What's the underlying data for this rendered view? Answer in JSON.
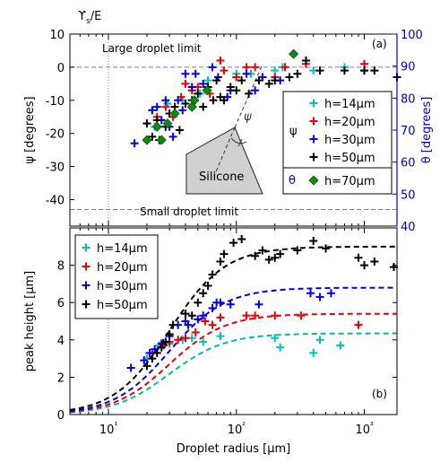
{
  "chart_data": [
    {
      "type": "scatter",
      "panel_label": "(a)",
      "xscale": "log",
      "xlim": [
        5,
        1800
      ],
      "ylim": [
        -48,
        10
      ],
      "y2lim": [
        40,
        100
      ],
      "yticks": [
        10,
        0,
        -10,
        -20,
        -30,
        -40
      ],
      "y2ticks": [
        100,
        90,
        80,
        70,
        60,
        50,
        40
      ],
      "ylabel": "ψ [degrees]",
      "y2label": "θ [degrees]",
      "top_xlabel": "ϒs/E",
      "reference_lines": {
        "large_y": 0,
        "small_y": -43,
        "vline_x": 10,
        "large_label": "Large droplet limit",
        "small_label": "Small droplet limit"
      },
      "inset": {
        "material": "Silicone",
        "angle_label": "ψ"
      },
      "legend": {
        "psi_label": "ψ",
        "theta_label": "θ",
        "position": "right"
      },
      "series": [
        {
          "name": "h=14μm",
          "color": "#00c0c0",
          "marker": "plus",
          "points": [
            [
              22,
              -13
            ],
            [
              23,
              -18
            ],
            [
              29,
              -11
            ],
            [
              38,
              -10
            ],
            [
              45,
              -7
            ],
            [
              52,
              -8
            ],
            [
              60,
              -4
            ],
            [
              100,
              -2
            ],
            [
              130,
              -2
            ],
            [
              200,
              -1
            ],
            [
              230,
              0
            ],
            [
              400,
              -1
            ],
            [
              700,
              0
            ]
          ]
        },
        {
          "name": "h=20μm",
          "color": "#ee0000",
          "marker": "plus",
          "points": [
            [
              24,
              -15
            ],
            [
              28,
              -12
            ],
            [
              32,
              -15
            ],
            [
              37,
              -9
            ],
            [
              40,
              -5
            ],
            [
              45,
              -7
            ],
            [
              50,
              -6
            ],
            [
              62,
              -8
            ],
            [
              75,
              2
            ],
            [
              80,
              -1
            ],
            [
              100,
              -3
            ],
            [
              120,
              0
            ],
            [
              140,
              0
            ],
            [
              160,
              -3
            ],
            [
              200,
              -3
            ],
            [
              240,
              0
            ],
            [
              350,
              1
            ],
            [
              1000,
              1
            ]
          ]
        },
        {
          "name": "h=30μm",
          "color": "#0000ee",
          "marker": "plus",
          "points": [
            [
              16,
              -23
            ],
            [
              20,
              -17
            ],
            [
              22,
              -13
            ],
            [
              24,
              -12
            ],
            [
              26,
              -16
            ],
            [
              28,
              -10
            ],
            [
              30,
              -18
            ],
            [
              32,
              -21
            ],
            [
              35,
              -10
            ],
            [
              38,
              -13
            ],
            [
              40,
              -2
            ],
            [
              45,
              -6
            ],
            [
              48,
              -2
            ],
            [
              55,
              -5
            ],
            [
              65,
              0
            ],
            [
              72,
              -3
            ],
            [
              85,
              -9
            ],
            [
              90,
              -7
            ],
            [
              120,
              -2
            ],
            [
              140,
              -7
            ],
            [
              160,
              -3
            ],
            [
              220,
              -4
            ],
            [
              350,
              2
            ],
            [
              1000,
              -1
            ]
          ]
        },
        {
          "name": "h=50μm",
          "color": "#000000",
          "marker": "plus",
          "points": [
            [
              20,
              -17
            ],
            [
              22,
              -21
            ],
            [
              24,
              -16
            ],
            [
              25,
              -22
            ],
            [
              28,
              -18
            ],
            [
              30,
              -14
            ],
            [
              33,
              -12
            ],
            [
              36,
              -19
            ],
            [
              40,
              -11
            ],
            [
              45,
              -10
            ],
            [
              50,
              -8
            ],
            [
              55,
              -12
            ],
            [
              60,
              -6
            ],
            [
              66,
              -10
            ],
            [
              70,
              -4
            ],
            [
              75,
              -9
            ],
            [
              80,
              -10
            ],
            [
              90,
              -6
            ],
            [
              100,
              -7
            ],
            [
              110,
              -4
            ],
            [
              125,
              -8
            ],
            [
              150,
              -4
            ],
            [
              180,
              -5
            ],
            [
              200,
              -4
            ],
            [
              260,
              -3
            ],
            [
              300,
              -2
            ],
            [
              350,
              2
            ],
            [
              450,
              -1
            ],
            [
              700,
              -1
            ],
            [
              1000,
              -1
            ],
            [
              1200,
              -1
            ],
            [
              1800,
              -3
            ]
          ]
        },
        {
          "name": "h=70μm",
          "color": "#118811",
          "marker": "diamond",
          "points": [
            [
              20,
              -22
            ],
            [
              24,
              -18
            ],
            [
              26,
              -22
            ],
            [
              29,
              -17
            ],
            [
              33,
              -14
            ],
            [
              45,
              -12
            ],
            [
              47,
              -10
            ],
            [
              59,
              -7
            ],
            [
              280,
              4
            ]
          ]
        }
      ]
    },
    {
      "type": "scatter",
      "panel_label": "(b)",
      "xscale": "log",
      "xlim": [
        5,
        1800
      ],
      "ylim": [
        0,
        10
      ],
      "yticks": [
        0,
        2,
        4,
        6,
        8
      ],
      "xticks_major": [
        10,
        100,
        1000
      ],
      "xtick_labels": [
        "10¹",
        "10²",
        "10³"
      ],
      "xlabel": "Droplet radius [μm]",
      "ylabel": "peak height [μm]",
      "legend": {
        "position": "top-left"
      },
      "series": [
        {
          "name": "h=14μm",
          "color": "#00c0c0",
          "marker": "plus",
          "points": [
            [
              20,
              3
            ],
            [
              25,
              3.7
            ],
            [
              30,
              3.8
            ],
            [
              38,
              4
            ],
            [
              45,
              4.1
            ],
            [
              55,
              3.9
            ],
            [
              75,
              4.2
            ],
            [
              200,
              4.1
            ],
            [
              220,
              3.6
            ],
            [
              400,
              3.3
            ],
            [
              450,
              4
            ],
            [
              650,
              3.7
            ]
          ],
          "fit_plateau": 4.35
        },
        {
          "name": "h=20μm",
          "color": "#ee0000",
          "marker": "plus",
          "points": [
            [
              22,
              3.3
            ],
            [
              27,
              3.7
            ],
            [
              30,
              3.9
            ],
            [
              35,
              4
            ],
            [
              40,
              4.1
            ],
            [
              48,
              4.4
            ],
            [
              57,
              5
            ],
            [
              65,
              4.8
            ],
            [
              75,
              5.2
            ],
            [
              120,
              5.3
            ],
            [
              140,
              5.3
            ],
            [
              200,
              5.3
            ],
            [
              320,
              5.3
            ],
            [
              900,
              4.8
            ]
          ],
          "fit_plateau": 5.4
        },
        {
          "name": "h=30μm",
          "color": "#0000ee",
          "marker": "plus",
          "points": [
            [
              15,
              2.5
            ],
            [
              19,
              2.9
            ],
            [
              21,
              3.3
            ],
            [
              23,
              3.5
            ],
            [
              26,
              3.8
            ],
            [
              30,
              4.2
            ],
            [
              35,
              4.8
            ],
            [
              40,
              5
            ],
            [
              42,
              4.8
            ],
            [
              50,
              5.1
            ],
            [
              55,
              5.3
            ],
            [
              65,
              5.7
            ],
            [
              70,
              6
            ],
            [
              75,
              6
            ],
            [
              90,
              5.9
            ],
            [
              150,
              5.9
            ],
            [
              380,
              6.5
            ],
            [
              450,
              6.3
            ],
            [
              550,
              6.5
            ]
          ],
          "fit_plateau": 6.8
        },
        {
          "name": "h=50μm",
          "color": "#000000",
          "marker": "plus",
          "points": [
            [
              20,
              2.6
            ],
            [
              22,
              3
            ],
            [
              24,
              3.3
            ],
            [
              26,
              3.6
            ],
            [
              28,
              3.9
            ],
            [
              30,
              4.3
            ],
            [
              32,
              4.8
            ],
            [
              40,
              5.4
            ],
            [
              45,
              5.3
            ],
            [
              50,
              6
            ],
            [
              55,
              6.5
            ],
            [
              60,
              6.9
            ],
            [
              65,
              7.5
            ],
            [
              75,
              8.2
            ],
            [
              80,
              8.6
            ],
            [
              95,
              9.2
            ],
            [
              110,
              9.4
            ],
            [
              140,
              8.5
            ],
            [
              160,
              8.8
            ],
            [
              180,
              8.3
            ],
            [
              200,
              8.4
            ],
            [
              220,
              8.6
            ],
            [
              300,
              8.8
            ],
            [
              400,
              9.3
            ],
            [
              500,
              8.9
            ],
            [
              900,
              8.4
            ],
            [
              1000,
              8
            ],
            [
              1200,
              8.2
            ],
            [
              1700,
              7.9
            ]
          ],
          "fit_plateau": 9.0
        }
      ]
    }
  ]
}
